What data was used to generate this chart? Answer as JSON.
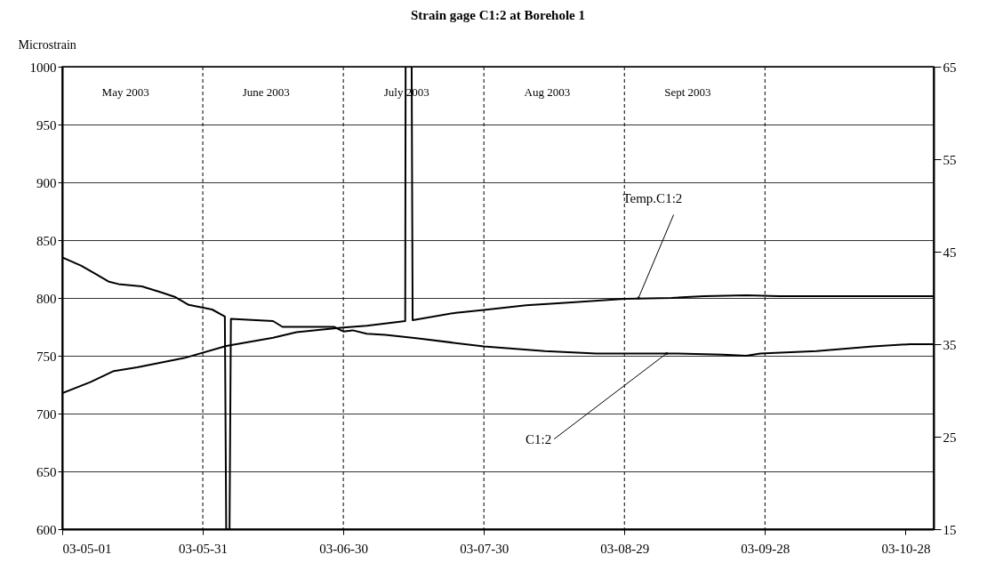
{
  "chart_data": {
    "type": "line",
    "title": "Strain gage C1:2 at Borehole 1",
    "ylabel": "Microstrain",
    "xlim": [
      "2003-05-01",
      "2003-11-03"
    ],
    "xticks": [
      {
        "value": "2003-05-01",
        "label": "03-05-01"
      },
      {
        "value": "2003-05-31",
        "label": "03-05-31"
      },
      {
        "value": "2003-06-30",
        "label": "03-06-30"
      },
      {
        "value": "2003-07-30",
        "label": "03-07-30"
      },
      {
        "value": "2003-08-29",
        "label": "03-08-29"
      },
      {
        "value": "2003-09-28",
        "label": "03-09-28"
      },
      {
        "value": "2003-10-28",
        "label": "03-10-28"
      }
    ],
    "ylim": [
      600,
      1000
    ],
    "yticks": [
      600,
      650,
      700,
      750,
      800,
      850,
      900,
      950,
      1000
    ],
    "y2lim": [
      15,
      65
    ],
    "y2ticks": [
      15,
      25,
      35,
      45,
      55,
      65
    ],
    "grid": "y",
    "marker": "none",
    "line_style": "solid",
    "series": [
      {
        "color": "#000000",
        "x": [
          "2003-05-01",
          "2003-05-05",
          "2003-05-08",
          "2003-05-11",
          "2003-05-13",
          "2003-05-18",
          "2003-05-22",
          "2003-05-25",
          "2003-05-28",
          "2003-06-02",
          "2003-06-04T17:00",
          "2003-06-05T00:00",
          "2003-06-05T17:00",
          "2003-06-06",
          "2003-06-15",
          "2003-06-17",
          "2003-06-28",
          "2003-06-30",
          "2003-07-02",
          "2003-07-05",
          "2003-07-09",
          "2003-07-16",
          "2003-07-30",
          "2003-08-12",
          "2003-08-23",
          "2003-09-08",
          "2003-09-19",
          "2003-09-24",
          "2003-09-27",
          "2003-10-09",
          "2003-10-21",
          "2003-10-29",
          "2003-11-03"
        ],
        "values": [
          835,
          828,
          821,
          814,
          812,
          810,
          805,
          801,
          794,
          790,
          784,
          600,
          600,
          782,
          780,
          775,
          775,
          771,
          772,
          769,
          768,
          765,
          758,
          754,
          752,
          752,
          751,
          750,
          752,
          754,
          758,
          760,
          760
        ]
      },
      {
        "color": "#000000",
        "axis": "y2",
        "x": [
          "2003-05-01",
          "2003-05-07",
          "2003-05-12",
          "2003-05-17",
          "2003-05-27",
          "2003-06-05",
          "2003-06-15",
          "2003-06-20",
          "2003-06-28",
          "2003-06-30",
          "2003-07-05",
          "2003-07-13T05:00",
          "2003-07-13T07:00",
          "2003-07-14T14:00",
          "2003-07-14T19:00",
          "2003-07-24",
          "2003-07-30",
          "2003-08-08",
          "2003-08-17",
          "2003-08-29",
          "2003-09-08",
          "2003-09-15",
          "2003-09-24",
          "2003-10-01",
          "2003-10-17",
          "2003-11-03"
        ],
        "values": [
          29.7,
          30.9,
          32.1,
          32.5,
          33.5,
          34.8,
          35.7,
          36.3,
          36.7,
          36.8,
          37.0,
          37.5,
          65,
          65,
          37.6,
          38.4,
          38.7,
          39.2,
          39.5,
          39.9,
          40.0,
          40.2,
          40.3,
          40.2,
          40.2,
          40.2
        ]
      }
    ],
    "ref_lines": [
      {
        "axis": "x",
        "value": "2003-05-31",
        "color": "#000000",
        "line_style": "dashed"
      },
      {
        "axis": "x",
        "value": "2003-06-30",
        "color": "#000000",
        "line_style": "dashed"
      },
      {
        "axis": "x",
        "value": "2003-07-30",
        "color": "#000000",
        "line_style": "dashed"
      },
      {
        "axis": "x",
        "value": "2003-08-29",
        "color": "#000000",
        "line_style": "dashed"
      },
      {
        "axis": "x",
        "value": "2003-09-28",
        "color": "#000000",
        "line_style": "dashed"
      }
    ],
    "annotations": [
      "May 2003",
      "June 2003",
      "July 2003",
      "Aug 2003",
      "Sept 2003",
      {
        "text": "Temp.C1:2",
        "x": "2003-09-01",
        "y": 800
      },
      {
        "text": "C1:2",
        "x": "2003-09-07",
        "y": 752
      }
    ]
  }
}
